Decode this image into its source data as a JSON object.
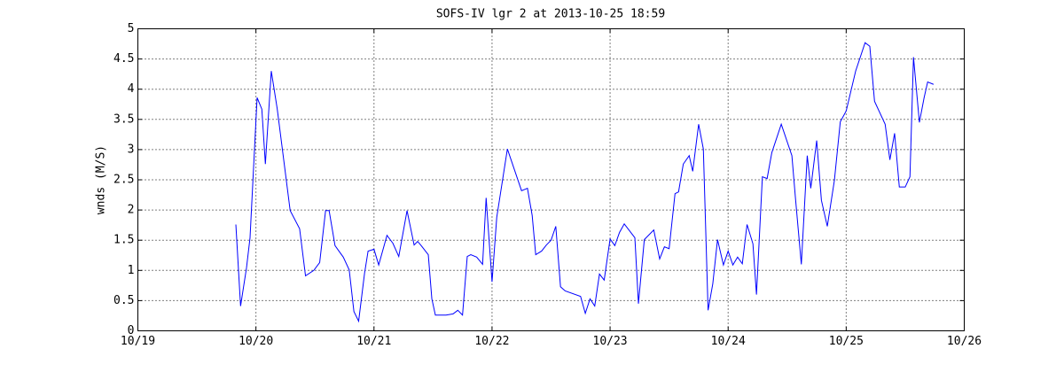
{
  "chart_data": {
    "type": "line",
    "title": "SOFS-IV lgr 2 at 2013-10-25 18:59",
    "y_label": "wnds (M/S)",
    "x": [
      19.83,
      19.87,
      19.92,
      19.95,
      20.01,
      20.05,
      20.08,
      20.13,
      20.18,
      20.24,
      20.29,
      20.37,
      20.42,
      20.49,
      20.54,
      20.59,
      20.62,
      20.67,
      20.74,
      20.79,
      20.83,
      20.87,
      20.92,
      20.95,
      21.0,
      21.04,
      21.11,
      21.16,
      21.21,
      21.28,
      21.34,
      21.37,
      21.4,
      21.46,
      21.49,
      21.52,
      21.61,
      21.67,
      21.71,
      21.75,
      21.79,
      21.82,
      21.87,
      21.92,
      21.95,
      22.0,
      22.04,
      22.13,
      22.25,
      22.3,
      22.34,
      22.37,
      22.42,
      22.46,
      22.5,
      22.54,
      22.58,
      22.62,
      22.75,
      22.79,
      22.83,
      22.87,
      22.91,
      22.95,
      23.0,
      23.04,
      23.08,
      23.12,
      23.21,
      23.24,
      23.29,
      23.37,
      23.42,
      23.46,
      23.5,
      23.55,
      23.58,
      23.62,
      23.67,
      23.7,
      23.75,
      23.79,
      23.83,
      23.87,
      23.91,
      23.96,
      24.0,
      24.04,
      24.08,
      24.12,
      24.16,
      24.21,
      24.24,
      24.29,
      24.33,
      24.37,
      24.45,
      24.54,
      24.57,
      24.62,
      24.67,
      24.7,
      24.75,
      24.79,
      24.84,
      24.9,
      24.95,
      25.0,
      25.08,
      25.16,
      25.2,
      25.24,
      25.33,
      25.37,
      25.41,
      25.45,
      25.5,
      25.54,
      25.57,
      25.62,
      25.66,
      25.69,
      25.74
    ],
    "series": [
      {
        "color": "#0000ff",
        "values": [
          1.76,
          0.41,
          1.04,
          1.54,
          3.86,
          3.67,
          2.76,
          4.3,
          3.68,
          2.76,
          1.99,
          1.69,
          0.91,
          1.0,
          1.13,
          1.99,
          1.99,
          1.41,
          1.22,
          1.01,
          0.32,
          0.16,
          0.95,
          1.32,
          1.35,
          1.09,
          1.58,
          1.45,
          1.23,
          1.99,
          1.42,
          1.48,
          1.41,
          1.26,
          0.53,
          0.26,
          0.26,
          0.28,
          0.34,
          0.26,
          1.23,
          1.26,
          1.22,
          1.1,
          2.2,
          0.81,
          1.88,
          3.01,
          2.32,
          2.36,
          1.91,
          1.26,
          1.32,
          1.42,
          1.5,
          1.73,
          0.73,
          0.66,
          0.57,
          0.29,
          0.53,
          0.41,
          0.94,
          0.84,
          1.52,
          1.41,
          1.63,
          1.77,
          1.54,
          0.45,
          1.51,
          1.67,
          1.19,
          1.39,
          1.36,
          2.27,
          2.3,
          2.76,
          2.9,
          2.64,
          3.42,
          3.01,
          0.34,
          0.78,
          1.51,
          1.09,
          1.32,
          1.09,
          1.22,
          1.11,
          1.76,
          1.44,
          0.6,
          2.55,
          2.52,
          2.95,
          3.42,
          2.9,
          2.2,
          1.1,
          2.9,
          2.36,
          3.15,
          2.16,
          1.73,
          2.49,
          3.46,
          3.64,
          4.3,
          4.77,
          4.71,
          3.8,
          3.42,
          2.83,
          3.27,
          2.38,
          2.38,
          2.55,
          4.53,
          3.45,
          3.86,
          4.12,
          4.08
        ]
      }
    ],
    "xlim": [
      19,
      26
    ],
    "xticks": [
      {
        "value": 19,
        "label": "10/19"
      },
      {
        "value": 20,
        "label": "10/20"
      },
      {
        "value": 21,
        "label": "10/21"
      },
      {
        "value": 22,
        "label": "10/22"
      },
      {
        "value": 23,
        "label": "10/23"
      },
      {
        "value": 24,
        "label": "10/24"
      },
      {
        "value": 25,
        "label": "10/25"
      },
      {
        "value": 26,
        "label": "10/26"
      }
    ],
    "ylim": [
      0,
      5
    ],
    "yticks": [
      0,
      0.5,
      1,
      1.5,
      2,
      2.5,
      3,
      3.5,
      4,
      4.5,
      5
    ],
    "grid": true
  }
}
